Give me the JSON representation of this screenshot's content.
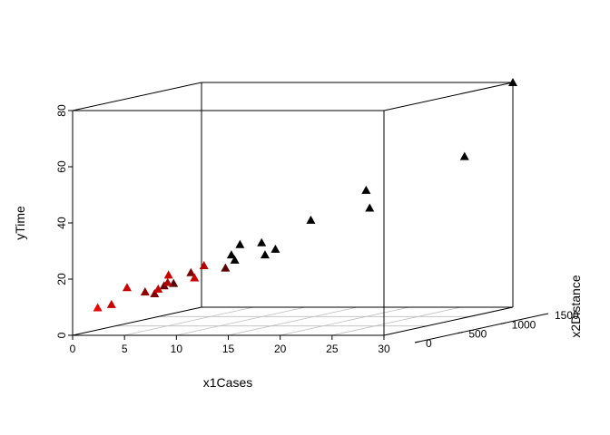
{
  "chart_data": {
    "type": "scatter3d",
    "marker": "triangle",
    "color_scale": [
      "#ff0000",
      "#000000"
    ],
    "axes": {
      "x": {
        "label": "x1Cases",
        "lim": [
          0,
          30
        ],
        "ticks": [
          "0",
          "5",
          "10",
          "15",
          "20",
          "25",
          "30"
        ]
      },
      "y": {
        "label": "x2Distance",
        "lim": [
          0,
          1500
        ],
        "ticks": [
          "0",
          "500",
          "1000",
          "1500"
        ]
      },
      "z": {
        "label": "yTime",
        "lim": [
          0,
          80
        ],
        "ticks": [
          "0",
          "20",
          "40",
          "60",
          "80"
        ]
      }
    },
    "grid": true,
    "points": [
      {
        "x": 2,
        "y": 50,
        "z": 9.5
      },
      {
        "x": 2.5,
        "y": 150,
        "z": 10
      },
      {
        "x": 4,
        "y": 150,
        "z": 16
      },
      {
        "x": 4.5,
        "y": 300,
        "z": 13.5
      },
      {
        "x": 5,
        "y": 350,
        "z": 12.5
      },
      {
        "x": 5.5,
        "y": 400,
        "z": 15
      },
      {
        "x": 6,
        "y": 450,
        "z": 15.5
      },
      {
        "x": 7,
        "y": 150,
        "z": 15.5
      },
      {
        "x": 7.5,
        "y": 200,
        "z": 17.5
      },
      {
        "x": 8,
        "y": 150,
        "z": 20.5
      },
      {
        "x": 8.5,
        "y": 350,
        "z": 20
      },
      {
        "x": 9,
        "y": 800,
        "z": 21.5
      },
      {
        "x": 9.5,
        "y": 700,
        "z": 24
      },
      {
        "x": 9.5,
        "y": 800,
        "z": 27
      },
      {
        "x": 10.5,
        "y": 150,
        "z": 19.5
      },
      {
        "x": 11,
        "y": 200,
        "z": 23.5
      },
      {
        "x": 11,
        "y": 450,
        "z": 21
      },
      {
        "x": 11.5,
        "y": 850,
        "z": 23
      },
      {
        "x": 12,
        "y": 750,
        "z": 28
      },
      {
        "x": 12.5,
        "y": 850,
        "z": 25
      },
      {
        "x": 15.5,
        "y": 900,
        "z": 35
      },
      {
        "x": 20,
        "y": 1000,
        "z": 45
      },
      {
        "x": 22,
        "y": 800,
        "z": 40
      },
      {
        "x": 27,
        "y": 1300,
        "z": 55
      },
      {
        "x": 30,
        "y": 1500,
        "z": 80
      }
    ]
  }
}
